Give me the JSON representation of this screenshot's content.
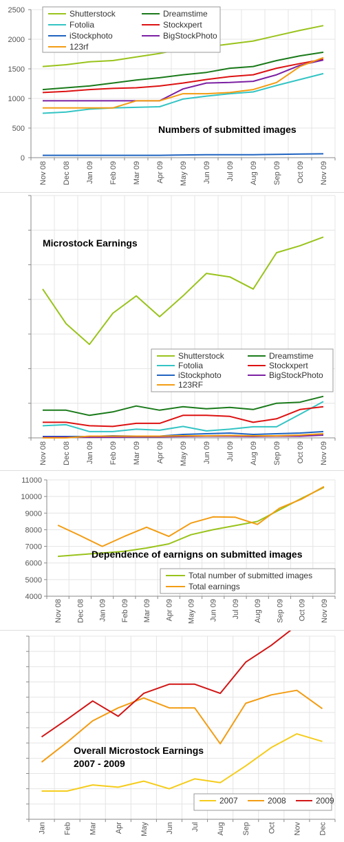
{
  "chart_data": [
    {
      "type": "line",
      "title": "Numbers of submitted images",
      "xlabel": "",
      "ylabel": "",
      "categories": [
        "Nov 08",
        "Dec 08",
        "Jan 09",
        "Feb 09",
        "Mar 09",
        "Apr 09",
        "May 09",
        "Jun 09",
        "Jul 09",
        "Aug 09",
        "Sep 09",
        "Oct 09",
        "Nov 09"
      ],
      "ylim": [
        0,
        2500
      ],
      "yticks": [
        "0",
        "500",
        "1000",
        "1500",
        "2000",
        "2500"
      ],
      "grid": true,
      "legend": "top-left",
      "series": [
        {
          "name": "Shutterstock",
          "color": "#99c31b",
          "values": [
            1540,
            1570,
            1620,
            1640,
            1700,
            1760,
            1840,
            1870,
            1920,
            1970,
            2060,
            2150,
            2230
          ]
        },
        {
          "name": "Dreamstime",
          "color": "#1a7a1a",
          "values": [
            1150,
            1180,
            1210,
            1260,
            1310,
            1350,
            1400,
            1440,
            1510,
            1540,
            1640,
            1720,
            1780
          ]
        },
        {
          "name": "Fotolia",
          "color": "#33c4c4",
          "values": [
            750,
            770,
            820,
            840,
            850,
            860,
            990,
            1040,
            1080,
            1110,
            1220,
            1320,
            1420
          ]
        },
        {
          "name": "Stockxpert",
          "color": "#dd1111",
          "values": [
            1100,
            1120,
            1150,
            1170,
            1180,
            1210,
            1260,
            1320,
            1370,
            1400,
            1510,
            1590,
            1660
          ]
        },
        {
          "name": "iStockphoto",
          "color": "#1f63c0",
          "values": [
            40,
            40,
            40,
            40,
            40,
            40,
            45,
            50,
            50,
            50,
            55,
            60,
            65
          ]
        },
        {
          "name": "BigStockPhoto",
          "color": "#7b1fa2",
          "values": [
            960,
            960,
            960,
            960,
            960,
            960,
            1160,
            1260,
            1270,
            1290,
            1400,
            1560,
            1650
          ]
        },
        {
          "name": "123rf",
          "color": "#f39c12",
          "values": [
            840,
            840,
            840,
            840,
            960,
            960,
            1080,
            1080,
            1100,
            1150,
            1270,
            1540,
            1690
          ]
        }
      ]
    },
    {
      "type": "line",
      "title": "Microstock Earnings",
      "xlabel": "",
      "ylabel": "",
      "categories": [
        "Nov 08",
        "Dec 08",
        "Jan 09",
        "Feb 09",
        "Mar 09",
        "Apr 09",
        "May 09",
        "Jun 09",
        "Jul 09",
        "Aug 09",
        "Sep 09",
        "Oct 09",
        "Nov 09"
      ],
      "ylim": [
        0,
        7
      ],
      "yticks": [
        "",
        "",
        "",
        "",
        "",
        "",
        "",
        ""
      ],
      "grid": true,
      "legend": "bottom-right",
      "series": [
        {
          "name": "Shutterstock",
          "color": "#99c31b",
          "values": [
            4.3,
            3.3,
            2.7,
            3.6,
            4.1,
            3.5,
            4.1,
            4.75,
            4.65,
            4.3,
            5.35,
            5.55,
            5.8
          ]
        },
        {
          "name": "Dreamstime",
          "color": "#1a7a1a",
          "values": [
            0.8,
            0.8,
            0.65,
            0.75,
            0.92,
            0.8,
            0.9,
            0.84,
            0.88,
            0.82,
            1.0,
            1.03,
            1.2
          ]
        },
        {
          "name": "Fotolia",
          "color": "#33c4c4",
          "values": [
            0.35,
            0.38,
            0.18,
            0.18,
            0.25,
            0.22,
            0.33,
            0.2,
            0.25,
            0.32,
            0.32,
            0.68,
            1.05
          ]
        },
        {
          "name": "Stockxpert",
          "color": "#dd1111",
          "values": [
            0.45,
            0.45,
            0.35,
            0.33,
            0.42,
            0.42,
            0.65,
            0.65,
            0.62,
            0.45,
            0.55,
            0.82,
            0.9
          ]
        },
        {
          "name": "iStockphoto",
          "color": "#1f63c0",
          "values": [
            0.04,
            0.04,
            0.04,
            0.06,
            0.05,
            0.05,
            0.1,
            0.12,
            0.14,
            0.1,
            0.12,
            0.14,
            0.18
          ]
        },
        {
          "name": "BigStockPhoto",
          "color": "#7b1fa2",
          "values": [
            0.02,
            0.02,
            0.02,
            0.02,
            0.03,
            0.03,
            0.04,
            0.05,
            0.05,
            0.04,
            0.05,
            0.05,
            0.08
          ]
        },
        {
          "name": "123RF",
          "color": "#f39c12",
          "values": [
            0.0,
            0.0,
            0.05,
            0.05,
            0.05,
            0.05,
            0.06,
            0.06,
            0.07,
            0.06,
            0.06,
            0.08,
            0.12
          ]
        }
      ]
    },
    {
      "type": "line",
      "title": "Dependence of earnigns on submitted images",
      "xlabel": "",
      "ylabel": "",
      "categories": [
        "Nov 08",
        "Dec 08",
        "Jan 09",
        "Feb 09",
        "Mar 09",
        "Apr 09",
        "May 09",
        "Jun 09",
        "Jul 09",
        "Aug 09",
        "Sep 09",
        "Oct 09",
        "Nov 09"
      ],
      "ylim": [
        4000,
        11000
      ],
      "yticks": [
        "4000",
        "5000",
        "6000",
        "7000",
        "8000",
        "9000",
        "10000",
        "11000"
      ],
      "grid": true,
      "legend": "bottom-right",
      "series": [
        {
          "name": "Total number of submitted images",
          "color": "#99c31b",
          "values": [
            6400,
            6500,
            6600,
            6700,
            6900,
            7150,
            7700,
            8000,
            8250,
            8500,
            9200,
            9900,
            10550
          ]
        },
        {
          "name": "Total earnings",
          "color": "#f39c12",
          "values": [
            8270,
            7650,
            7000,
            7600,
            8150,
            7600,
            8400,
            8770,
            8750,
            8320,
            9300,
            9850,
            10600
          ]
        }
      ]
    },
    {
      "type": "line",
      "title": "Overall Microstock Earnings 2007 - 2009",
      "title_lines": [
        "Overall Microstock Earnings",
        "2007 - 2009"
      ],
      "xlabel": "",
      "ylabel": "",
      "categories": [
        "Jan",
        "Feb",
        "Mar",
        "Apr",
        "May",
        "Jun",
        "Jul",
        "Aug",
        "Sep",
        "Oct",
        "Nov",
        "Dec"
      ],
      "ylim": [
        0,
        12
      ],
      "yticks": [
        "",
        "",
        "",
        "",
        "",
        "",
        "",
        "",
        "",
        "",
        "",
        "",
        ""
      ],
      "grid": true,
      "legend": "bottom-right",
      "series": [
        {
          "name": "2007",
          "color": "#f5cc1b",
          "values": [
            1.85,
            1.85,
            2.25,
            2.1,
            2.5,
            2.0,
            2.65,
            2.4,
            3.5,
            4.7,
            5.6,
            5.1
          ]
        },
        {
          "name": "2008",
          "color": "#f39c12",
          "values": [
            3.75,
            5.05,
            6.45,
            7.3,
            7.95,
            7.3,
            7.3,
            4.95,
            7.6,
            8.15,
            8.45,
            7.25
          ]
        },
        {
          "name": "2009",
          "color": "#d11515",
          "values": [
            5.4,
            6.55,
            7.75,
            6.75,
            8.25,
            8.85,
            8.85,
            8.25,
            10.3,
            11.4,
            12.7,
            null
          ]
        }
      ]
    }
  ]
}
